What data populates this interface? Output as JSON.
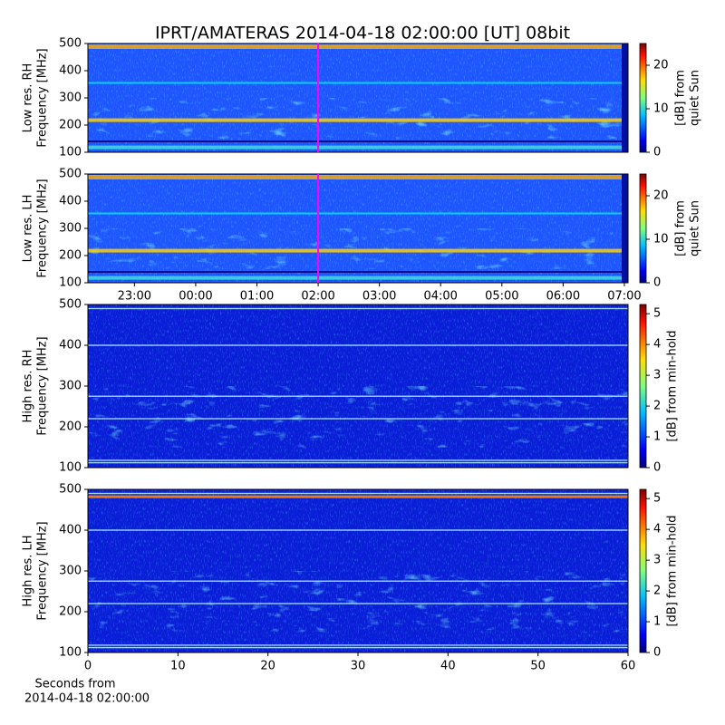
{
  "chart_data": [
    {
      "type": "spectrogram",
      "title": "IPRT/AMATERAS 2014-04-18 02:00:00 [UT]   08bit",
      "ylabel": [
        "Low res. RH",
        "Frequency [MHz]"
      ],
      "ylim": [
        100,
        500
      ],
      "yticks": [
        100,
        200,
        300,
        400,
        500
      ],
      "xlim": [
        -1.76,
        7.06
      ],
      "marker_x": 2,
      "marker_color": "#ff00ff",
      "colorbar_label": [
        "[dB] from",
        "quiet Sun"
      ],
      "clim": [
        0,
        25
      ],
      "cticks": [
        0,
        10,
        20
      ]
    },
    {
      "type": "spectrogram",
      "ylabel": [
        "Low res. LH",
        "Frequency [MHz]"
      ],
      "ylim": [
        100,
        500
      ],
      "yticks": [
        100,
        200,
        300,
        400,
        500
      ],
      "xlim": [
        -1.76,
        7.06
      ],
      "xticks": [
        {
          "value": -1,
          "label": "23:00"
        },
        {
          "value": 0,
          "label": "00:00"
        },
        {
          "value": 1,
          "label": "01:00"
        },
        {
          "value": 2,
          "label": "02:00"
        },
        {
          "value": 3,
          "label": "03:00"
        },
        {
          "value": 4,
          "label": "04:00"
        },
        {
          "value": 5,
          "label": "05:00"
        },
        {
          "value": 6,
          "label": "06:00"
        },
        {
          "value": 7,
          "label": "07:00"
        }
      ],
      "marker_x": 2,
      "marker_color": "#ff00ff",
      "colorbar_label": [
        "[dB] from",
        "quiet Sun"
      ],
      "clim": [
        0,
        25
      ],
      "cticks": [
        0,
        10,
        20
      ]
    },
    {
      "type": "spectrogram",
      "ylabel": [
        "High res. RH",
        "Frequency [MHz]"
      ],
      "ylim": [
        100,
        500
      ],
      "yticks": [
        100,
        200,
        300,
        400,
        500
      ],
      "xlim": [
        0,
        60
      ],
      "colorbar_label": [
        "[dB] from min-hold"
      ],
      "clim": [
        0,
        5.3
      ],
      "cticks": [
        0,
        1,
        2,
        3,
        4,
        5
      ]
    },
    {
      "type": "spectrogram",
      "ylabel": [
        "High res. LH",
        "Frequency [MHz]"
      ],
      "ylim": [
        100,
        500
      ],
      "yticks": [
        100,
        200,
        300,
        400,
        500
      ],
      "xlim": [
        0,
        60
      ],
      "xticks": [
        0,
        10,
        20,
        30,
        40,
        50,
        60
      ],
      "xlabel": [
        "Seconds from",
        "2014-04-18 02:00:00"
      ],
      "colorbar_label": [
        "[dB] from min-hold"
      ],
      "clim": [
        0,
        5.3
      ],
      "cticks": [
        0,
        1,
        2,
        3,
        4,
        5
      ]
    }
  ]
}
